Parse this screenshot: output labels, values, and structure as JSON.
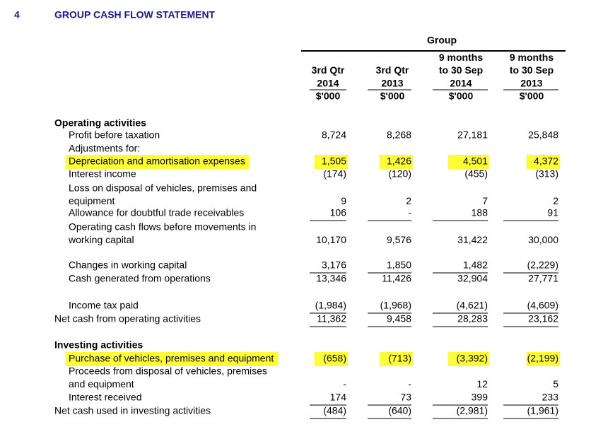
{
  "header": {
    "number": "4",
    "title": "GROUP CASH FLOW STATEMENT"
  },
  "group": "Group",
  "columns": [
    [
      "3rd Qtr",
      "2014",
      "$'000"
    ],
    [
      "3rd Qtr",
      "2013",
      "$'000"
    ],
    [
      "9 months",
      "to 30 Sep",
      "2014",
      "$'000"
    ],
    [
      "9 months",
      "to 30 Sep",
      "2013",
      "$'000"
    ]
  ],
  "rows": [
    {
      "label": [
        "Operating activities"
      ]
    },
    {
      "label": [
        "Profit before taxation"
      ],
      "values": [
        "8,724",
        "8,268",
        "27,181",
        "25,848"
      ]
    },
    {
      "label": [
        "Adjustments for:"
      ]
    },
    {
      "label": [
        "Depreciation and amortisation expenses"
      ],
      "values": [
        "1,505",
        "1,426",
        "4,501",
        "4,372"
      ]
    },
    {
      "label": [
        "Interest income"
      ],
      "values": [
        "(174)",
        "(120)",
        "(455)",
        "(313)"
      ]
    },
    {
      "label": [
        "Loss on disposal of vehicles, premises and",
        "equipment"
      ],
      "values": [
        "9",
        "2",
        "7",
        "2"
      ]
    },
    {
      "label": [
        "Allowance for doubtful trade receivables"
      ],
      "values": [
        "106",
        "-",
        "188",
        "91"
      ]
    },
    {
      "label": [
        "Operating cash flows before movements in",
        "working capital"
      ],
      "values": [
        "10,170",
        "9,576",
        "31,422",
        "30,000"
      ]
    },
    {
      "label": [
        "Changes in working capital"
      ],
      "values": [
        "3,176",
        "1,850",
        "1,482",
        "(2,229)"
      ]
    },
    {
      "label": [
        "Cash generated from operations"
      ],
      "values": [
        "13,346",
        "11,426",
        "32,904",
        "27,771"
      ]
    },
    {
      "label": [
        "Income tax paid"
      ],
      "values": [
        "(1,984)",
        "(1,968)",
        "(4,621)",
        "(4,609)"
      ]
    },
    {
      "label": [
        "Net cash from operating activities"
      ],
      "values": [
        "11,362",
        "9,458",
        "28,283",
        "23,162"
      ]
    },
    {
      "label": [
        "Investing activities"
      ]
    },
    {
      "label": [
        "Purchase of vehicles, premises and equipment"
      ],
      "values": [
        "(658)",
        "(713)",
        "(3,392)",
        "(2,199)"
      ]
    },
    {
      "label": [
        "Proceeds from disposal of vehicles, premises",
        "and equipment"
      ],
      "values": [
        "-",
        "-",
        "12",
        "5"
      ]
    },
    {
      "label": [
        "Interest received"
      ],
      "values": [
        "174",
        "73",
        "399",
        "233"
      ]
    },
    {
      "label": [
        "Net cash used in investing activities"
      ],
      "values": [
        "(484)",
        "(640)",
        "(2,981)",
        "(1,961)"
      ]
    }
  ]
}
